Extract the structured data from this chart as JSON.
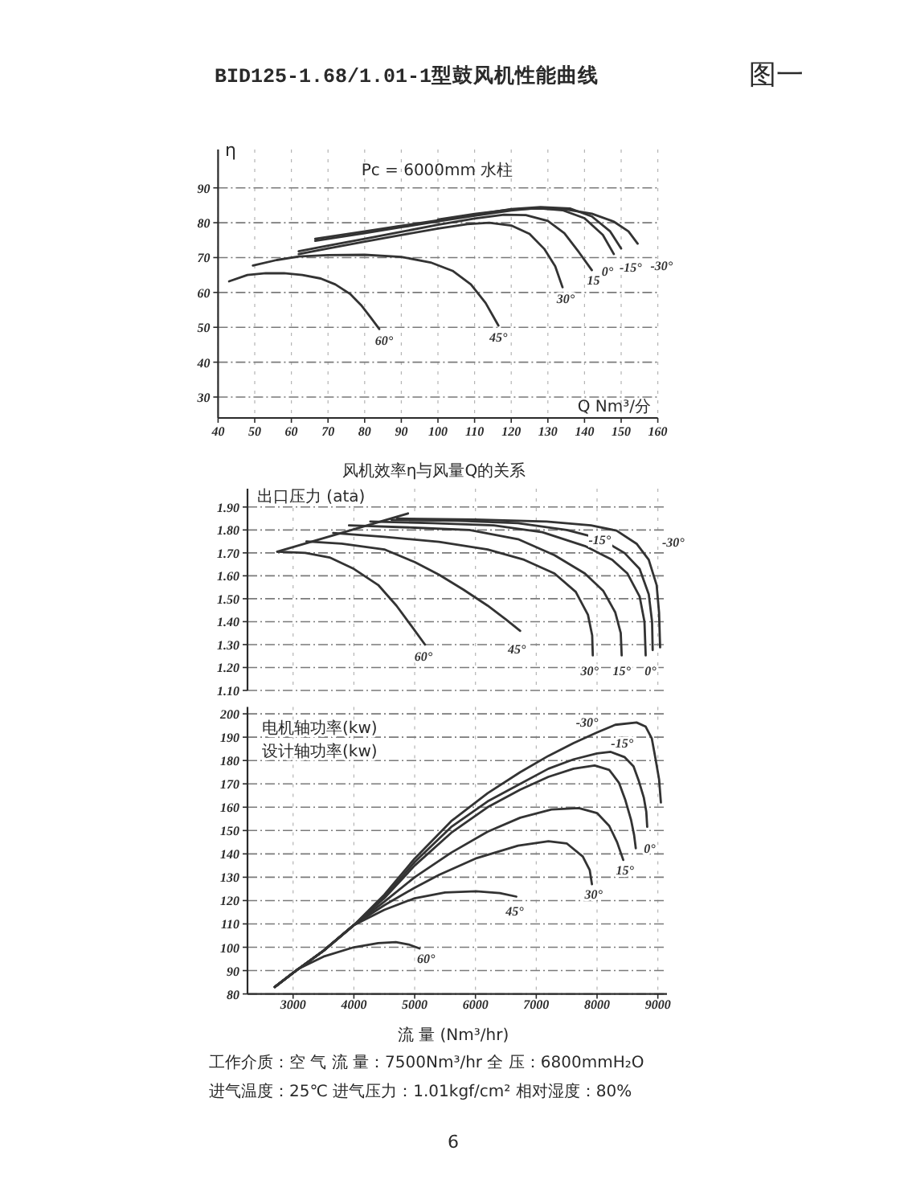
{
  "chart_data": [
    {
      "type": "line",
      "title": "BID125-1.68/1.01-1型鼓风机性能曲线",
      "xlabel": "Q Nm³/分",
      "ylabel": "η",
      "xlim": [
        40,
        160
      ],
      "xticks": [
        40,
        50,
        60,
        70,
        80,
        90,
        100,
        110,
        120,
        130,
        140,
        150,
        160
      ],
      "ylim": [
        24,
        101
      ],
      "yticks": [
        30,
        40,
        50,
        60,
        70,
        80,
        90
      ],
      "grid": true,
      "annotations": [
        "图一",
        "Pc = 6000mm 水柱",
        "风机效率η与风量Q的关系"
      ],
      "series": [
        {
          "name": "60°",
          "color": "#333333",
          "x": [
            43,
            48,
            53,
            58,
            63,
            68,
            72,
            76,
            79,
            81.5,
            84
          ],
          "values": [
            63.2,
            65,
            65.5,
            65.5,
            65,
            64,
            62.3,
            59.6,
            56.4,
            53,
            49.5
          ]
        },
        {
          "name": "45°",
          "color": "#333333",
          "x": [
            49.5,
            56,
            62,
            70,
            80,
            90,
            98,
            104,
            109,
            113,
            116.5
          ],
          "values": [
            67.7,
            69.3,
            70.3,
            70.7,
            70.8,
            70.2,
            68.6,
            66.2,
            62.3,
            57,
            50.5
          ]
        },
        {
          "name": "30°",
          "color": "#333333",
          "x": [
            62,
            70,
            80,
            90,
            100,
            108,
            114,
            120,
            125,
            129,
            132,
            134
          ],
          "values": [
            71,
            72.6,
            74.6,
            76.5,
            78.3,
            79.6,
            80,
            79.2,
            76.8,
            72.5,
            67.5,
            61.5
          ]
        },
        {
          "name": "15",
          "color": "#333333",
          "x": [
            62,
            70,
            80,
            90,
            100,
            110,
            118,
            124,
            130,
            134.5,
            138.5,
            142
          ],
          "values": [
            71.8,
            73.4,
            75.4,
            77.4,
            79.4,
            81.2,
            82.3,
            82.2,
            80.5,
            77,
            71.5,
            66.4
          ]
        },
        {
          "name": "0°",
          "color": "#333333",
          "x": [
            66.5,
            80,
            90,
            100,
            110,
            120,
            127,
            134,
            140,
            145,
            148
          ],
          "values": [
            74.8,
            77,
            78.7,
            80.4,
            82,
            83.5,
            84.2,
            83.6,
            81.3,
            76.5,
            71
          ]
        },
        {
          "name": "-15°",
          "color": "#333333",
          "x": [
            66.5,
            80,
            90,
            100,
            110,
            120,
            128,
            136,
            142,
            147,
            150
          ],
          "values": [
            75.4,
            77.5,
            79.1,
            80.7,
            82.3,
            83.9,
            84.5,
            84.1,
            81.8,
            77.5,
            72.6
          ]
        },
        {
          "name": "-30°",
          "color": "#333333",
          "x": [
            100,
            110,
            120,
            127,
            135,
            142,
            148,
            152,
            154.5
          ],
          "values": [
            80.9,
            82.5,
            83.8,
            84.1,
            83.8,
            82.6,
            80.3,
            77.5,
            74
          ]
        }
      ]
    },
    {
      "type": "line",
      "ylabel": "出口压力 (ata)",
      "xlim": [
        2250,
        9150
      ],
      "xticks": [
        3000,
        4000,
        5000,
        6000,
        7000,
        8000,
        9000
      ],
      "ylim": [
        1.1,
        1.98
      ],
      "yticks": [
        {
          "value": 1.1,
          "label": "1.10"
        },
        {
          "value": 1.2,
          "label": "1.20"
        },
        {
          "value": 1.3,
          "label": "1.30"
        },
        {
          "value": 1.4,
          "label": "1.40"
        },
        {
          "value": 1.5,
          "label": "1.50"
        },
        {
          "value": 1.6,
          "label": "1.60"
        },
        {
          "value": 1.7,
          "label": "1.70"
        },
        {
          "value": 1.8,
          "label": "1.80"
        },
        {
          "value": 1.9,
          "label": "1.90"
        }
      ],
      "grid": true,
      "tick_labels": "y",
      "series": [
        {
          "name": "60°",
          "color": "#333333",
          "x": [
            2740,
            3200,
            3600,
            4000,
            4400,
            4700,
            4950,
            5170
          ],
          "values": [
            1.705,
            1.7,
            1.68,
            1.63,
            1.56,
            1.47,
            1.38,
            1.3
          ]
        },
        {
          "name": "45°",
          "color": "#333333",
          "x": [
            3220,
            3800,
            4500,
            5000,
            5400,
            5800,
            6200,
            6500,
            6735
          ],
          "values": [
            1.75,
            1.74,
            1.715,
            1.66,
            1.605,
            1.54,
            1.47,
            1.41,
            1.36
          ]
        },
        {
          "name": "30°",
          "color": "#333333",
          "x": [
            3660,
            4500,
            5400,
            6200,
            6800,
            7300,
            7650,
            7850,
            7920,
            7930
          ],
          "values": [
            1.787,
            1.77,
            1.748,
            1.715,
            1.67,
            1.61,
            1.53,
            1.43,
            1.34,
            1.253
          ]
        },
        {
          "name": "15°",
          "color": "#333333",
          "x": [
            3920,
            5000,
            5900,
            6700,
            7300,
            7800,
            8100,
            8300,
            8390,
            8405
          ],
          "values": [
            1.82,
            1.81,
            1.8,
            1.76,
            1.69,
            1.61,
            1.535,
            1.44,
            1.35,
            1.253
          ]
        },
        {
          "name": "0°",
          "color": "#333333",
          "x": [
            4270,
            5300,
            6300,
            7100,
            7800,
            8250,
            8500,
            8700,
            8780,
            8800
          ],
          "values": [
            1.837,
            1.83,
            1.82,
            1.79,
            1.73,
            1.67,
            1.61,
            1.51,
            1.4,
            1.253
          ]
        },
        {
          "name": "-15°",
          "color": "#333333",
          "x": [
            4620,
            5700,
            6700,
            7500,
            8050,
            8450,
            8700,
            8850,
            8905,
            8915
          ],
          "values": [
            1.844,
            1.84,
            1.83,
            1.8,
            1.762,
            1.7,
            1.63,
            1.52,
            1.4,
            1.276
          ]
        },
        {
          "name": "-30°",
          "color": "#333333",
          "x": [
            4710,
            6000,
            7170,
            7900,
            8320,
            8650,
            8850,
            8980,
            9020,
            9037
          ],
          "values": [
            1.85,
            1.845,
            1.837,
            1.82,
            1.797,
            1.74,
            1.67,
            1.56,
            1.44,
            1.288
          ]
        },
        {
          "color": "#333333",
          "x": [
            2740,
            4890
          ],
          "values": [
            1.705,
            1.872
          ]
        }
      ]
    },
    {
      "type": "line",
      "xlabel": "流 量 (Nm³/hr)",
      "ylabel": "电机轴功率(kw)",
      "xlim": [
        2250,
        9150
      ],
      "xticks": [
        3000,
        4000,
        5000,
        6000,
        7000,
        8000,
        9000
      ],
      "ylim": [
        80,
        203
      ],
      "yticks": [
        80,
        90,
        100,
        110,
        120,
        130,
        140,
        150,
        160,
        170,
        180,
        190,
        200
      ],
      "grid": true,
      "annotations": [
        "设计轴功率(kw)",
        "工作介质：空 气 流 量：7500Nm³/hr 全 压：6800mmH₂O",
        "进气温度：25℃ 进气压力：1.01kgf/cm² 相对湿度：80%",
        "6"
      ],
      "series": [
        {
          "name": "60°",
          "color": "#333333",
          "x": [
            2700,
            2950,
            3070,
            3500,
            4000,
            4400,
            4690,
            4900,
            5080
          ],
          "values": [
            83,
            88,
            90.5,
            96,
            100,
            101.8,
            102.2,
            101.2,
            99.5
          ]
        },
        {
          "name": "45°",
          "color": "#333333",
          "x": [
            2700,
            3000,
            3500,
            4000,
            4500,
            5000,
            5500,
            6010,
            6400,
            6672
          ],
          "values": [
            83,
            89,
            98.5,
            109.5,
            116,
            121,
            123.5,
            124,
            123.2,
            121.7
          ]
        },
        {
          "name": "30°",
          "color": "#333333",
          "x": [
            2700,
            3000,
            3500,
            4000,
            4500,
            5000,
            5400,
            6000,
            6700,
            7200,
            7500,
            7765,
            7880,
            7916
          ],
          "values": [
            83,
            89,
            98.5,
            109.5,
            118,
            125.5,
            131,
            138,
            143.5,
            145.4,
            144.5,
            138.9,
            133,
            127
          ]
        },
        {
          "name": "15°",
          "color": "#333333",
          "x": [
            2700,
            3000,
            3500,
            4000,
            4500,
            5000,
            5600,
            6200,
            6735,
            7250,
            7700,
            8000,
            8200,
            8330,
            8431
          ],
          "values": [
            83,
            89,
            98.5,
            109.5,
            119.5,
            130,
            140.5,
            149.5,
            155.5,
            159,
            159.6,
            157.5,
            152,
            145,
            137.4
          ]
        },
        {
          "name": "0°",
          "color": "#333333",
          "x": [
            2700,
            3000,
            3500,
            4000,
            4500,
            5000,
            5600,
            6200,
            6735,
            7200,
            7614,
            7960,
            8200,
            8360,
            8466,
            8560,
            8610,
            8637
          ],
          "values": [
            83,
            89,
            98.5,
            109.5,
            121,
            135,
            149,
            160,
            167.5,
            173,
            176.5,
            177.9,
            176,
            170.5,
            163,
            154.5,
            148,
            142.4
          ]
        },
        {
          "name": "-15°",
          "color": "#333333",
          "x": [
            2700,
            3000,
            3500,
            4000,
            4500,
            5000,
            5600,
            6200,
            6735,
            7200,
            7614,
            8000,
            8225,
            8450,
            8600,
            8690,
            8770,
            8810,
            8825
          ],
          "values": [
            83,
            89,
            98.5,
            109.5,
            121.5,
            136.5,
            151.5,
            162.5,
            170,
            176.5,
            180.5,
            183,
            183.7,
            181.5,
            177.5,
            171,
            164,
            158,
            151.6
          ]
        },
        {
          "name": "-30°",
          "color": "#333333",
          "x": [
            2700,
            3000,
            3500,
            4000,
            4500,
            5000,
            5600,
            6200,
            6735,
            7200,
            7614,
            8000,
            8300,
            8650,
            8800,
            8900,
            8960,
            9020,
            9050
          ],
          "values": [
            83,
            89,
            98.5,
            109.5,
            122.5,
            138,
            154,
            166,
            175,
            182,
            187.5,
            192,
            195.3,
            196.3,
            194.5,
            189.5,
            181,
            172,
            162
          ]
        }
      ]
    }
  ]
}
